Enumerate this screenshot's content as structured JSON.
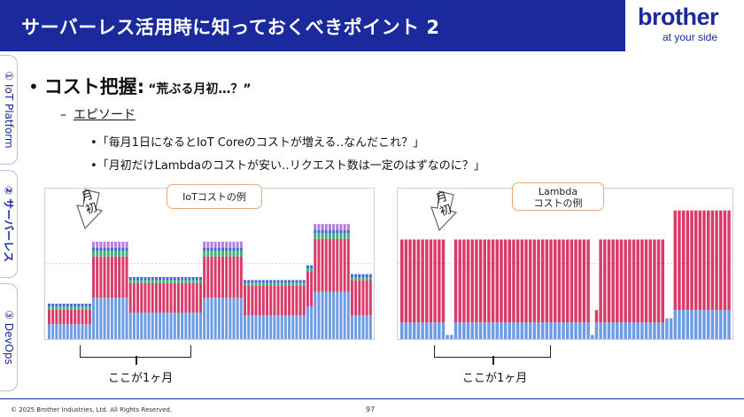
{
  "header": {
    "title": "サーバーレス活用時に知っておくべきポイント 2",
    "logo_word": "brother",
    "logo_tag": "at your side",
    "background": "#1a2a9c"
  },
  "side_tabs": [
    {
      "label": "① IoT Platform",
      "active": false
    },
    {
      "label": "② サーバーレス",
      "active": true
    },
    {
      "label": "③ DevOps",
      "active": false
    }
  ],
  "content": {
    "bullet": "•",
    "heading": "コスト把握:",
    "heading_quote": "“荒ぶる月初…？”",
    "sub_dash": "–",
    "sub_label": "エピソード",
    "items": [
      "•「毎月1日になるとIoT Coreのコストが増える‥なんだこれ？」",
      "•「月初だけLambdaのコストが安い‥リクエスト数は一定のはずなのに？」"
    ]
  },
  "callouts": {
    "left": "IoTコストの例",
    "right_line1": "Lambda",
    "right_line2": "コストの例"
  },
  "arrows": {
    "left": "月初",
    "right": "月初"
  },
  "brackets": {
    "left": "ここが1ヶ月",
    "right": "ここが1ヶ月"
  },
  "chart_data": [
    {
      "type": "bar",
      "stacked": true,
      "title": "IoTコストの例",
      "colors": [
        "#6e9be6",
        "#d93a6a",
        "#3fb07c",
        "#3f66d8",
        "#b87be0"
      ],
      "series": [
        {
          "values": [
            5,
            5,
            5,
            5,
            5,
            5,
            5,
            5,
            5,
            5,
            5,
            5,
            14,
            14,
            14,
            14,
            14,
            14,
            14,
            14,
            14,
            14,
            9,
            9,
            9,
            9,
            9,
            9,
            9,
            9,
            9,
            9,
            9,
            9,
            9,
            9,
            9,
            9,
            9,
            9,
            9,
            9,
            14,
            14,
            14,
            14,
            14,
            14,
            14,
            14,
            14,
            14,
            14,
            8,
            8,
            8,
            8,
            8,
            8,
            8,
            8,
            8,
            8,
            8,
            8,
            8,
            8,
            8,
            8,
            8,
            11,
            11,
            16,
            16,
            16,
            16,
            16,
            16,
            16,
            16,
            16,
            16,
            8,
            8,
            8,
            8,
            8,
            8
          ]
        },
        {
          "values": [
            5,
            5,
            5,
            5,
            5,
            5,
            5,
            5,
            5,
            5,
            5,
            5,
            14,
            14,
            14,
            14,
            14,
            14,
            14,
            14,
            14,
            14,
            10,
            10,
            10,
            10,
            10,
            10,
            10,
            10,
            10,
            10,
            10,
            10,
            10,
            10,
            10,
            10,
            10,
            10,
            10,
            10,
            14,
            14,
            14,
            14,
            14,
            14,
            14,
            14,
            14,
            14,
            14,
            10,
            10,
            10,
            10,
            10,
            10,
            10,
            10,
            10,
            10,
            10,
            10,
            10,
            10,
            10,
            10,
            10,
            12,
            12,
            18,
            18,
            18,
            18,
            18,
            18,
            18,
            18,
            18,
            18,
            12,
            12,
            12,
            12,
            12,
            12
          ]
        },
        {
          "values": [
            1,
            1,
            1,
            1,
            1,
            1,
            1,
            1,
            1,
            1,
            1,
            1,
            2,
            2,
            2,
            2,
            2,
            2,
            2,
            2,
            2,
            2,
            1,
            1,
            1,
            1,
            1,
            1,
            1,
            1,
            1,
            1,
            1,
            1,
            1,
            1,
            1,
            1,
            1,
            1,
            1,
            1,
            2,
            2,
            2,
            2,
            2,
            2,
            2,
            2,
            2,
            2,
            2,
            1,
            1,
            1,
            1,
            1,
            1,
            1,
            1,
            1,
            1,
            1,
            1,
            1,
            1,
            1,
            1,
            1,
            1,
            1,
            2,
            2,
            2,
            2,
            2,
            2,
            2,
            2,
            2,
            2,
            1,
            1,
            1,
            1,
            1,
            1
          ]
        },
        {
          "values": [
            1,
            1,
            1,
            1,
            1,
            1,
            1,
            1,
            1,
            1,
            1,
            1,
            1,
            1,
            1,
            1,
            1,
            1,
            1,
            1,
            1,
            1,
            1,
            1,
            1,
            1,
            1,
            1,
            1,
            1,
            1,
            1,
            1,
            1,
            1,
            1,
            1,
            1,
            1,
            1,
            1,
            1,
            1,
            1,
            1,
            1,
            1,
            1,
            1,
            1,
            1,
            1,
            1,
            1,
            1,
            1,
            1,
            1,
            1,
            1,
            1,
            1,
            1,
            1,
            1,
            1,
            1,
            1,
            1,
            1,
            1,
            1,
            1,
            1,
            1,
            1,
            1,
            1,
            1,
            1,
            1,
            1,
            1,
            1,
            1,
            1,
            1,
            1
          ]
        },
        {
          "values": [
            0,
            0,
            0,
            0,
            0,
            0,
            0,
            0,
            0,
            0,
            0,
            0,
            2,
            2,
            2,
            2,
            2,
            2,
            2,
            2,
            2,
            2,
            0,
            0,
            0,
            0,
            0,
            0,
            0,
            0,
            0,
            0,
            0,
            0,
            0,
            0,
            0,
            0,
            0,
            0,
            0,
            0,
            2,
            2,
            2,
            2,
            2,
            2,
            2,
            2,
            2,
            2,
            2,
            0,
            0,
            0,
            0,
            0,
            0,
            0,
            0,
            0,
            0,
            0,
            0,
            0,
            0,
            0,
            0,
            0,
            0,
            0,
            2,
            2,
            2,
            2,
            2,
            2,
            2,
            2,
            2,
            2,
            0,
            0,
            0,
            0,
            0,
            0
          ]
        }
      ]
    },
    {
      "type": "bar",
      "stacked": true,
      "title": "Lambda コストの例",
      "colors": [
        "#6e9be6",
        "#d93a6a"
      ],
      "series": [
        {
          "values": [
            8,
            8,
            8,
            8,
            8,
            8,
            8,
            8,
            8,
            8,
            8,
            2,
            2,
            8,
            8,
            8,
            8,
            8,
            8,
            8,
            8,
            8,
            8,
            8,
            8,
            8,
            8,
            8,
            8,
            8,
            8,
            8,
            8,
            8,
            8,
            8,
            8,
            8,
            8,
            8,
            8,
            8,
            8,
            8,
            8,
            8,
            2,
            8,
            8,
            8,
            8,
            8,
            8,
            8,
            8,
            8,
            8,
            8,
            8,
            8,
            8,
            8,
            8,
            8,
            10,
            10,
            14,
            14,
            14,
            14,
            14,
            14,
            14,
            14,
            14,
            14,
            14,
            14,
            14,
            14
          ]
        },
        {
          "values": [
            40,
            40,
            40,
            40,
            40,
            40,
            40,
            40,
            40,
            40,
            40,
            0,
            0,
            40,
            40,
            40,
            40,
            40,
            40,
            40,
            40,
            40,
            40,
            40,
            40,
            40,
            40,
            40,
            40,
            40,
            40,
            40,
            40,
            40,
            40,
            40,
            40,
            40,
            40,
            40,
            40,
            40,
            40,
            40,
            40,
            40,
            0,
            6,
            40,
            40,
            40,
            40,
            40,
            40,
            40,
            40,
            40,
            40,
            40,
            40,
            40,
            40,
            40,
            40,
            0,
            0,
            48,
            48,
            48,
            48,
            48,
            48,
            48,
            48,
            48,
            48,
            48,
            48,
            48,
            48
          ]
        }
      ]
    }
  ],
  "footer": {
    "copyright": "© 2025 Brother Industries, Ltd. All Rights Reserved.",
    "page": "97"
  }
}
